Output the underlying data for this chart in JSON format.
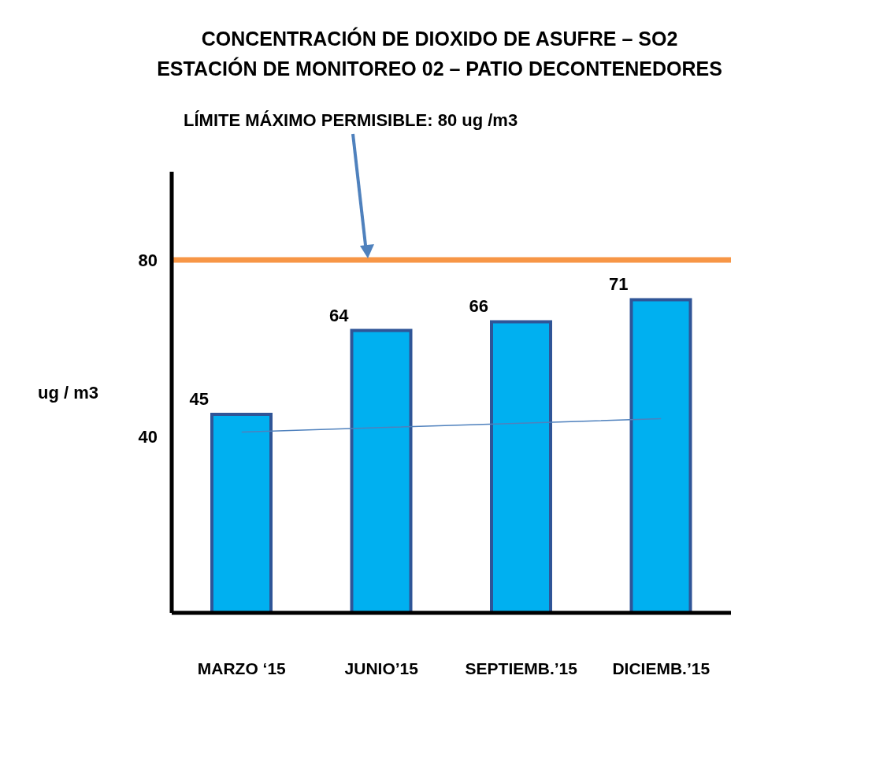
{
  "chart_data": {
    "type": "bar",
    "title": "CONCENTRACIÓN DE DIOXIDO DE ASUFRE – SO2",
    "subtitle": "ESTACIÓN DE MONITOREO 02 – PATIO DECONTENEDORES",
    "ylabel": "ug / m3",
    "categories": [
      "MARZO  ‘15",
      "JUNIO’15",
      "SEPTIEMB.’15",
      "DICIEMB.’15"
    ],
    "series": [
      {
        "color": "#00b0f0",
        "values": [
          45,
          64,
          66,
          71
        ],
        "value_labels": [
          "45",
          "64",
          "66",
          "71"
        ]
      },
      {
        "type": "line",
        "color": "#4f81bd",
        "values": [
          41,
          42,
          43,
          44
        ]
      }
    ],
    "ylim": [
      0,
      100
    ],
    "yticks": [
      40,
      80
    ],
    "grid": false,
    "legend": false,
    "marker": "none",
    "ref_lines": [
      {
        "axis": "y",
        "value": 80,
        "label": "LÍMITE MÁXIMO PERMISIBLE:  80 ug /m3",
        "color": "#f79646"
      }
    ]
  }
}
